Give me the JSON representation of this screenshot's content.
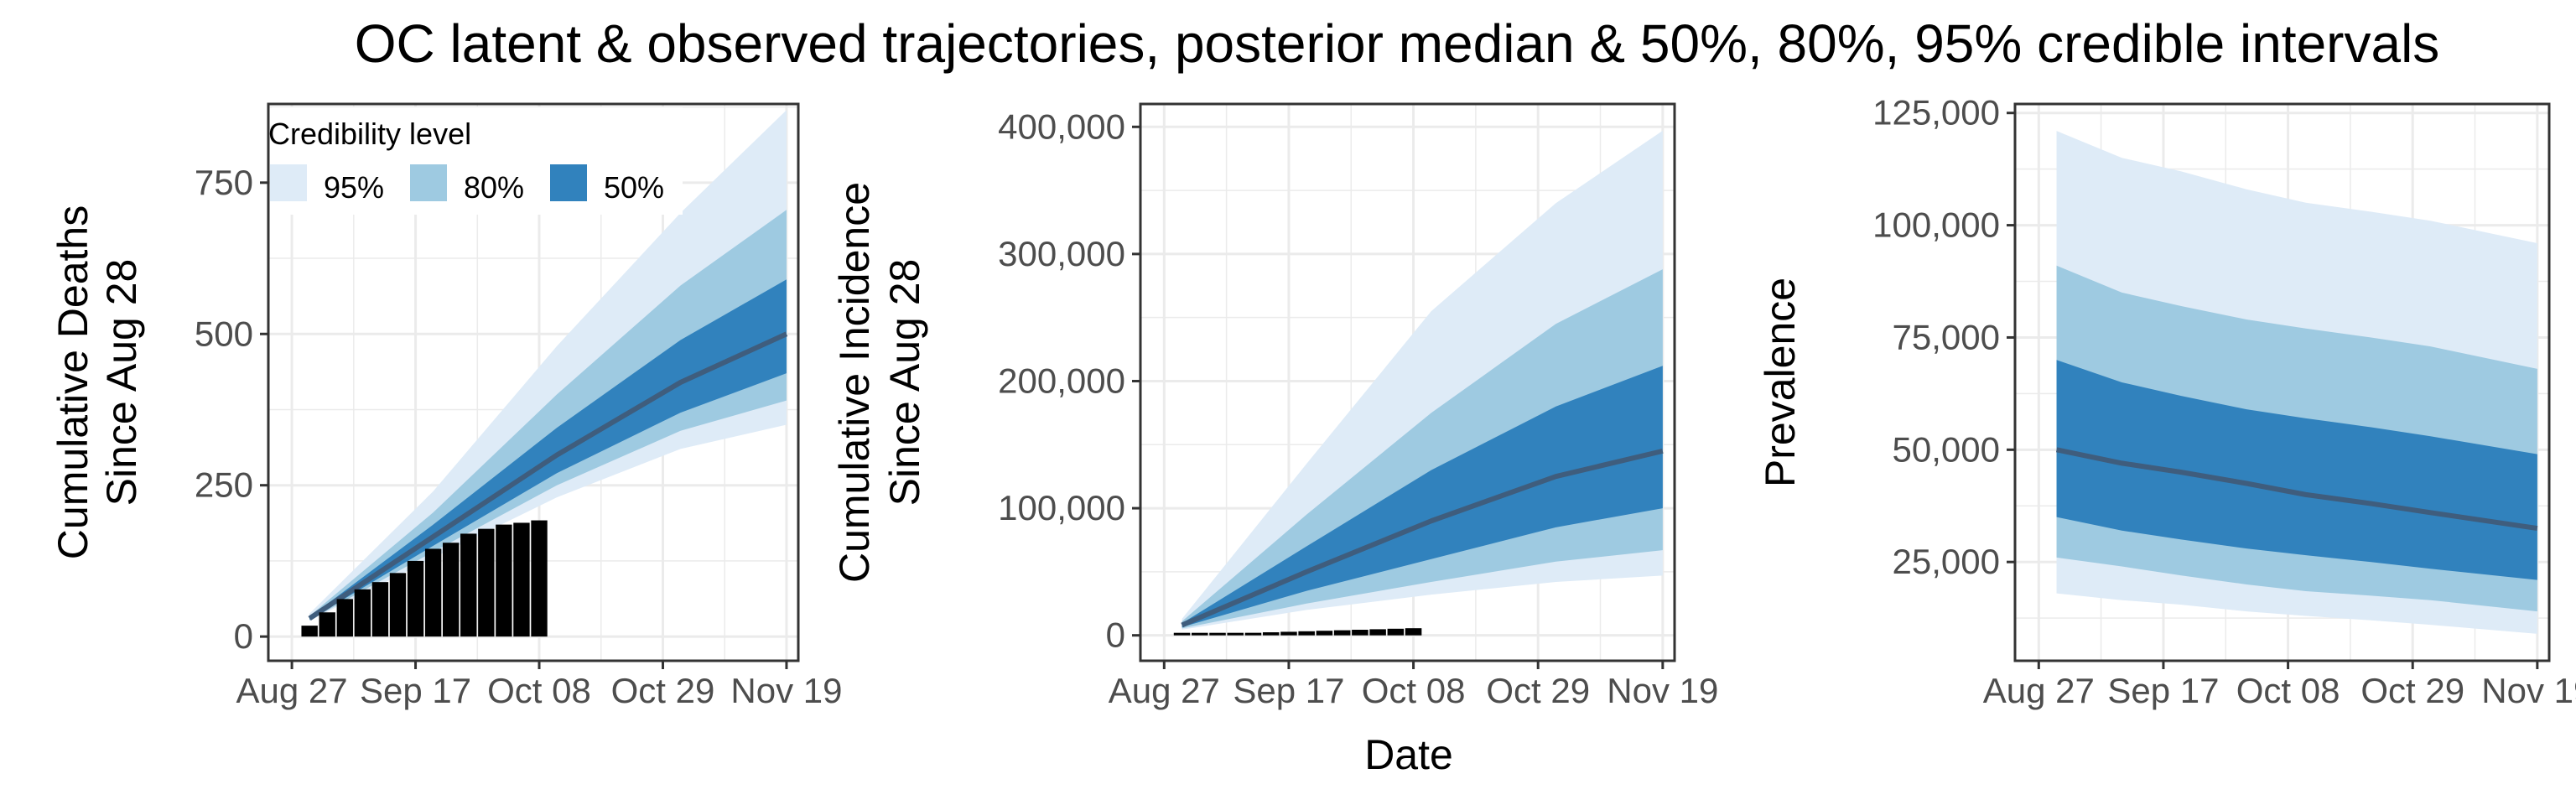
{
  "title": "OC latent & observed trajectories, posterior median & 50%, 80%, 95% credible intervals",
  "xlabel": "Date",
  "x_tick_labels": [
    "Aug 27",
    "Sep 17",
    "Oct 08",
    "Oct 29",
    "Nov 19"
  ],
  "legend": {
    "title": "Credibility level",
    "items": [
      {
        "label": "95%",
        "color": "#deebf7"
      },
      {
        "label": "80%",
        "color": "#9ecae1"
      },
      {
        "label": "50%",
        "color": "#3182bd"
      }
    ]
  },
  "colors": {
    "band_95": "#deebf7",
    "band_80": "#9ecae1",
    "band_50": "#3182bd",
    "median": "#3f5d7d",
    "observed": "#000000",
    "grid": "#ebebeb",
    "panel_border": "#333333"
  },
  "chart_data": [
    {
      "type": "area",
      "id": "deaths",
      "ylabel": "Cumulative Deaths\nSince Aug 28",
      "ylabel_lines": [
        "Cumulative Deaths",
        "Since Aug 28"
      ],
      "xlim": [
        "2020-08-23",
        "2020-11-21"
      ],
      "ylim": [
        -40,
        880
      ],
      "y_ticks": [
        0,
        250,
        500,
        750
      ],
      "y_tick_labels": [
        "0",
        "250",
        "500",
        "750"
      ],
      "legend_position": "top-left",
      "x": [
        "2020-08-30",
        "2020-09-20",
        "2020-10-11",
        "2020-11-01",
        "2020-11-19"
      ],
      "median": [
        30,
        165,
        300,
        420,
        500
      ],
      "ci50": {
        "lower": [
          28,
          150,
          270,
          370,
          435
        ],
        "upper": [
          32,
          185,
          345,
          490,
          590
        ]
      },
      "ci80": {
        "lower": [
          27,
          140,
          250,
          340,
          390
        ],
        "upper": [
          34,
          205,
          400,
          580,
          705
        ]
      },
      "ci95": {
        "lower": [
          26,
          130,
          230,
          310,
          350
        ],
        "upper": [
          38,
          240,
          480,
          700,
          870
        ]
      },
      "observed": {
        "x": [
          "2020-08-30",
          "2020-09-02",
          "2020-09-05",
          "2020-09-08",
          "2020-09-11",
          "2020-09-14",
          "2020-09-17",
          "2020-09-20",
          "2020-09-23",
          "2020-09-26",
          "2020-09-29",
          "2020-10-02",
          "2020-10-05",
          "2020-10-08"
        ],
        "values": [
          18,
          40,
          62,
          78,
          90,
          105,
          125,
          145,
          155,
          170,
          178,
          185,
          188,
          192
        ]
      }
    },
    {
      "type": "area",
      "id": "incidence",
      "ylabel": "Cumulative Incidence\nSince Aug 28",
      "ylabel_lines": [
        "Cumulative Incidence",
        "Since Aug 28"
      ],
      "xlim": [
        "2020-08-23",
        "2020-11-21"
      ],
      "ylim": [
        -20000,
        418000
      ],
      "y_ticks": [
        0,
        100000,
        200000,
        300000,
        400000
      ],
      "y_tick_labels": [
        "0",
        "100,000",
        "200,000",
        "300,000",
        "400,000"
      ],
      "x": [
        "2020-08-30",
        "2020-09-20",
        "2020-10-11",
        "2020-11-01",
        "2020-11-19"
      ],
      "median": [
        8000,
        50000,
        90000,
        125000,
        145000
      ],
      "ci50": {
        "lower": [
          6500,
          35000,
          60000,
          85000,
          100000
        ],
        "upper": [
          9500,
          70000,
          130000,
          180000,
          212000
        ]
      },
      "ci80": {
        "lower": [
          5500,
          25000,
          42000,
          58000,
          67000
        ],
        "upper": [
          11000,
          95000,
          175000,
          245000,
          288000
        ]
      },
      "ci95": {
        "lower": [
          4500,
          20000,
          32000,
          42000,
          47000
        ],
        "upper": [
          13000,
          135000,
          255000,
          340000,
          397000
        ]
      },
      "observed": {
        "x": [
          "2020-08-30",
          "2020-09-02",
          "2020-09-05",
          "2020-09-08",
          "2020-09-11",
          "2020-09-14",
          "2020-09-17",
          "2020-09-20",
          "2020-09-23",
          "2020-09-26",
          "2020-09-29",
          "2020-10-02",
          "2020-10-05",
          "2020-10-08"
        ],
        "values": [
          400,
          800,
          1200,
          1600,
          2000,
          2400,
          2800,
          3200,
          3600,
          4000,
          4400,
          4800,
          5200,
          5600
        ]
      }
    },
    {
      "type": "area",
      "id": "prevalence",
      "ylabel": "Prevalence",
      "ylabel_lines": [
        "Prevalence"
      ],
      "xlim": [
        "2020-08-23",
        "2020-11-21"
      ],
      "ylim": [
        3000,
        127000
      ],
      "y_ticks": [
        25000,
        50000,
        75000,
        100000,
        125000
      ],
      "y_tick_labels": [
        "25,000",
        "50,000",
        "75,000",
        "100,000",
        "125,000"
      ],
      "x": [
        "2020-08-30",
        "2020-09-10",
        "2020-09-20",
        "2020-10-01",
        "2020-10-11",
        "2020-10-22",
        "2020-11-01",
        "2020-11-19"
      ],
      "median": [
        50000,
        47000,
        45000,
        42500,
        40000,
        38000,
        36000,
        32500
      ],
      "ci50": {
        "lower": [
          35000,
          32000,
          30000,
          28000,
          26500,
          25000,
          23500,
          21000
        ],
        "upper": [
          70000,
          65000,
          62000,
          59000,
          57000,
          55000,
          53000,
          49000
        ]
      },
      "ci80": {
        "lower": [
          26000,
          24000,
          22000,
          20000,
          18500,
          17500,
          16500,
          14000
        ],
        "upper": [
          91000,
          85000,
          82000,
          79000,
          77000,
          75000,
          73000,
          68000
        ]
      },
      "ci95": {
        "lower": [
          18000,
          16500,
          15500,
          14000,
          13000,
          12000,
          11000,
          9000
        ],
        "upper": [
          121000,
          115000,
          112000,
          108000,
          105000,
          103000,
          101000,
          96000
        ]
      }
    }
  ]
}
